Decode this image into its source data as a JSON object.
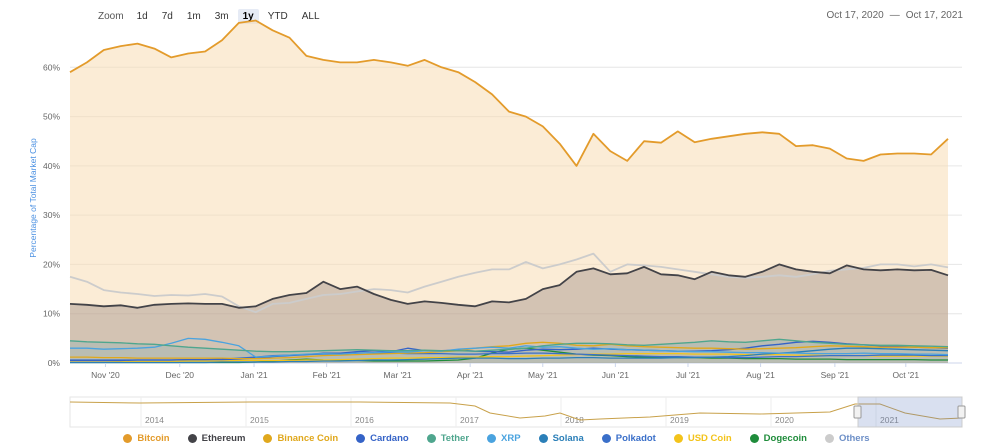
{
  "toolbar": {
    "zoom_label": "Zoom",
    "buttons": [
      "1d",
      "7d",
      "1m",
      "3m",
      "1y",
      "YTD",
      "ALL"
    ],
    "active": "1y"
  },
  "date_range": {
    "from": "Oct 17, 2020",
    "separator": "—",
    "to": "Oct 17, 2021"
  },
  "navigator": {
    "years": [
      "2014",
      "2015",
      "2016",
      "2017",
      "2018",
      "2019",
      "2020",
      "2021"
    ]
  },
  "chart_data": {
    "type": "area",
    "ylabel": "Percentage of Total Market Cap",
    "ylim": [
      0,
      70
    ],
    "y_ticks": [
      0,
      10,
      20,
      30,
      40,
      50,
      60
    ],
    "y_tick_labels": [
      "0%",
      "10%",
      "20%",
      "30%",
      "40%",
      "50%",
      "60%"
    ],
    "x_tick_labels": [
      "Nov '20",
      "Dec '20",
      "Jan '21",
      "Feb '21",
      "Mar '21",
      "Apr '21",
      "May '21",
      "Jun '21",
      "Jul '21",
      "Aug '21",
      "Sep '21",
      "Oct '21"
    ],
    "x_tick_weeks": [
      2.1,
      6.5,
      10.9,
      15.2,
      19.4,
      23.7,
      28.0,
      32.3,
      36.6,
      40.9,
      45.3,
      49.5
    ],
    "x_weeks": [
      0,
      1,
      2,
      3,
      4,
      5,
      6,
      7,
      8,
      9,
      10,
      11,
      12,
      13,
      14,
      15,
      16,
      17,
      18,
      19,
      20,
      21,
      22,
      23,
      24,
      25,
      26,
      27,
      28,
      29,
      30,
      31,
      32,
      33,
      34,
      35,
      36,
      37,
      38,
      39,
      40,
      41,
      42,
      43,
      44,
      45,
      46,
      47,
      48,
      49,
      50,
      51,
      52
    ],
    "grid": true,
    "legend_position": "bottom",
    "series": [
      {
        "name": "Others",
        "color": "#cccccc",
        "fill": false,
        "values": [
          17.5,
          16.5,
          14.8,
          14.3,
          14.0,
          13.6,
          13.8,
          13.7,
          14.0,
          13.5,
          11.5,
          10.3,
          12.0,
          12.2,
          13.0,
          13.8,
          14.0,
          14.5,
          15.0,
          14.8,
          14.3,
          15.5,
          16.5,
          17.5,
          18.3,
          19.0,
          19.0,
          20.5,
          19.2,
          20.0,
          21.0,
          22.2,
          18.5,
          20.0,
          19.8,
          19.5,
          19.0,
          18.5,
          18.0,
          17.5,
          17.3,
          17.5,
          17.8,
          17.5,
          18.0,
          18.7,
          19.0,
          19.3,
          20.0,
          20.0,
          19.6,
          20.0,
          19.4
        ]
      },
      {
        "name": "Ethereum",
        "color": "#434348",
        "fill": true,
        "values": [
          12.0,
          11.8,
          11.5,
          11.7,
          11.2,
          11.8,
          12.0,
          12.1,
          12.0,
          12.0,
          11.2,
          11.5,
          13.0,
          13.8,
          14.2,
          16.5,
          15.0,
          15.5,
          14.0,
          12.8,
          12.0,
          12.5,
          12.2,
          11.8,
          11.5,
          12.5,
          12.3,
          13.0,
          15.0,
          15.8,
          18.5,
          19.2,
          18.0,
          18.2,
          19.5,
          18.0,
          17.8,
          17.0,
          18.5,
          17.8,
          17.5,
          18.5,
          20.0,
          19.0,
          18.5,
          18.2,
          19.8,
          19.0,
          18.8,
          19.0,
          18.8,
          18.9,
          17.8
        ]
      },
      {
        "name": "Tether",
        "color": "#4fa68e",
        "fill": false,
        "values": [
          4.5,
          4.3,
          4.2,
          4.1,
          3.9,
          3.8,
          3.5,
          3.2,
          3.0,
          2.8,
          2.6,
          2.4,
          2.3,
          2.3,
          2.4,
          2.5,
          2.6,
          2.7,
          2.6,
          2.5,
          2.5,
          2.6,
          2.5,
          2.5,
          2.4,
          2.6,
          2.8,
          3.0,
          3.5,
          3.8,
          4.0,
          4.0,
          3.9,
          3.7,
          3.6,
          3.8,
          4.0,
          4.2,
          4.5,
          4.3,
          4.2,
          4.5,
          4.8,
          4.5,
          4.2,
          4.0,
          3.8,
          3.7,
          3.6,
          3.6,
          3.5,
          3.4,
          3.3
        ]
      },
      {
        "name": "XRP",
        "color": "#4aa3df",
        "fill": false,
        "values": [
          3.0,
          3.0,
          2.8,
          2.9,
          3.0,
          3.2,
          4.0,
          5.0,
          4.8,
          4.2,
          3.5,
          1.2,
          1.4,
          1.6,
          1.8,
          1.9,
          1.8,
          2.0,
          2.1,
          2.3,
          2.2,
          2.5,
          2.4,
          2.8,
          3.0,
          3.2,
          3.0,
          3.5,
          3.2,
          3.3,
          3.0,
          2.8,
          2.9,
          2.7,
          2.6,
          2.5,
          2.4,
          2.3,
          2.3,
          2.2,
          2.1,
          2.1,
          2.0,
          2.0,
          1.9,
          1.9,
          1.9,
          2.0,
          1.9,
          1.9,
          1.8,
          1.8,
          1.7
        ]
      },
      {
        "name": "Binance Coin",
        "color": "#e0a81d",
        "fill": false,
        "values": [
          1.2,
          1.2,
          1.1,
          1.1,
          1.0,
          1.0,
          1.0,
          1.0,
          1.0,
          1.0,
          0.9,
          0.9,
          1.0,
          1.1,
          1.3,
          1.5,
          1.6,
          1.7,
          1.8,
          1.9,
          2.0,
          2.1,
          2.3,
          2.5,
          3.0,
          3.3,
          3.5,
          4.0,
          4.2,
          4.0,
          3.6,
          3.5,
          3.8,
          3.5,
          3.3,
          3.2,
          3.1,
          3.0,
          3.0,
          2.9,
          2.8,
          2.9,
          3.0,
          3.1,
          3.3,
          3.5,
          3.4,
          3.3,
          3.2,
          3.2,
          3.2,
          3.1,
          3.1
        ]
      },
      {
        "name": "Cardano",
        "color": "#3563c7",
        "fill": false,
        "values": [
          0.5,
          0.5,
          0.5,
          0.5,
          0.6,
          0.6,
          0.6,
          0.7,
          0.7,
          0.7,
          0.8,
          1.0,
          1.3,
          1.5,
          1.7,
          2.0,
          2.0,
          2.3,
          2.5,
          2.3,
          3.0,
          2.5,
          2.5,
          2.6,
          2.4,
          2.3,
          2.2,
          2.6,
          2.8,
          2.7,
          2.8,
          3.0,
          2.8,
          2.7,
          2.6,
          2.5,
          2.4,
          2.4,
          2.5,
          2.7,
          3.0,
          3.5,
          3.8,
          4.2,
          4.4,
          4.2,
          3.9,
          3.7,
          3.5,
          3.4,
          3.2,
          3.1,
          3.0
        ]
      },
      {
        "name": "Solana",
        "color": "#2b7fb8",
        "fill": false,
        "values": [
          0.1,
          0.1,
          0.1,
          0.1,
          0.1,
          0.1,
          0.1,
          0.1,
          0.1,
          0.2,
          0.2,
          0.2,
          0.2,
          0.3,
          0.3,
          0.4,
          0.4,
          0.5,
          0.6,
          0.6,
          0.7,
          0.8,
          0.9,
          1.0,
          1.0,
          1.0,
          0.9,
          0.9,
          1.0,
          1.0,
          1.1,
          1.1,
          1.0,
          1.0,
          1.0,
          1.0,
          1.1,
          1.1,
          1.2,
          1.3,
          1.5,
          1.8,
          2.0,
          2.2,
          2.5,
          2.8,
          3.0,
          3.0,
          2.9,
          2.8,
          2.7,
          2.6,
          2.5
        ]
      },
      {
        "name": "Polkadot",
        "color": "#3a6fc9",
        "fill": false,
        "values": [
          0.6,
          0.6,
          0.6,
          0.6,
          0.6,
          0.6,
          0.6,
          0.7,
          0.7,
          0.8,
          1.0,
          1.2,
          1.5,
          1.6,
          1.7,
          1.8,
          1.8,
          2.0,
          2.1,
          2.0,
          1.9,
          1.9,
          1.9,
          1.8,
          1.8,
          1.9,
          1.9,
          2.0,
          2.0,
          1.9,
          1.8,
          1.7,
          1.6,
          1.5,
          1.4,
          1.3,
          1.3,
          1.2,
          1.2,
          1.1,
          1.1,
          1.2,
          1.3,
          1.3,
          1.4,
          1.5,
          1.5,
          1.5,
          1.6,
          1.6,
          1.6,
          1.5,
          1.5
        ]
      },
      {
        "name": "USD Coin",
        "color": "#f3c31b",
        "fill": false,
        "values": [
          0.2,
          0.2,
          0.2,
          0.3,
          0.3,
          0.3,
          0.3,
          0.4,
          0.4,
          0.4,
          0.5,
          0.5,
          0.5,
          0.5,
          0.6,
          0.6,
          0.7,
          0.8,
          0.9,
          1.0,
          1.0,
          1.1,
          1.1,
          1.2,
          1.2,
          1.3,
          1.3,
          1.4,
          1.5,
          1.6,
          1.7,
          1.8,
          1.8,
          1.9,
          1.9,
          1.9,
          1.9,
          1.8,
          1.8,
          1.8,
          1.7,
          1.7,
          1.7,
          1.6,
          1.6,
          1.5,
          1.5,
          1.5,
          1.4,
          1.4,
          1.4,
          1.4,
          1.4
        ]
      },
      {
        "name": "Dogecoin",
        "color": "#1f8c3b",
        "fill": false,
        "values": [
          0.1,
          0.1,
          0.1,
          0.1,
          0.1,
          0.1,
          0.1,
          0.1,
          0.1,
          0.1,
          0.1,
          0.2,
          0.4,
          0.6,
          0.8,
          0.6,
          0.5,
          0.5,
          0.4,
          0.4,
          0.4,
          0.4,
          0.5,
          0.6,
          1.0,
          2.0,
          2.8,
          3.0,
          2.6,
          2.2,
          1.8,
          1.6,
          1.5,
          1.3,
          1.2,
          1.2,
          1.1,
          1.1,
          1.0,
          1.0,
          0.9,
          0.9,
          0.9,
          0.8,
          0.8,
          0.8,
          0.7,
          0.7,
          0.7,
          0.7,
          0.7,
          0.6,
          0.6
        ]
      },
      {
        "name": "Bitcoin",
        "color": "#e39b2b",
        "fill": true,
        "values": [
          59.0,
          61.0,
          63.5,
          64.3,
          64.8,
          63.8,
          62.0,
          62.8,
          63.2,
          65.5,
          69.0,
          69.5,
          67.5,
          66.0,
          62.3,
          61.5,
          61.0,
          61.0,
          61.5,
          61.0,
          60.3,
          61.5,
          60.0,
          59.0,
          57.0,
          54.5,
          51.0,
          50.0,
          48.0,
          44.5,
          40.0,
          46.5,
          43.0,
          41.0,
          45.0,
          44.7,
          47.0,
          44.8,
          45.5,
          46.0,
          46.5,
          46.8,
          46.5,
          44.0,
          44.2,
          43.5,
          41.5,
          41.0,
          42.3,
          42.5,
          42.5,
          42.3,
          45.5
        ]
      }
    ]
  },
  "legend_items": [
    {
      "name": "Bitcoin",
      "color": "#e39b2b"
    },
    {
      "name": "Ethereum",
      "color": "#434348"
    },
    {
      "name": "Binance Coin",
      "color": "#e0a81d"
    },
    {
      "name": "Cardano",
      "color": "#3563c7"
    },
    {
      "name": "Tether",
      "color": "#4fa68e"
    },
    {
      "name": "XRP",
      "color": "#4aa3df"
    },
    {
      "name": "Solana",
      "color": "#2b7fb8"
    },
    {
      "name": "Polkadot",
      "color": "#3a6fc9"
    },
    {
      "name": "USD Coin",
      "color": "#f3c31b"
    },
    {
      "name": "Dogecoin",
      "color": "#1f8c3b"
    },
    {
      "name": "Others",
      "color": "#cccccc"
    }
  ]
}
